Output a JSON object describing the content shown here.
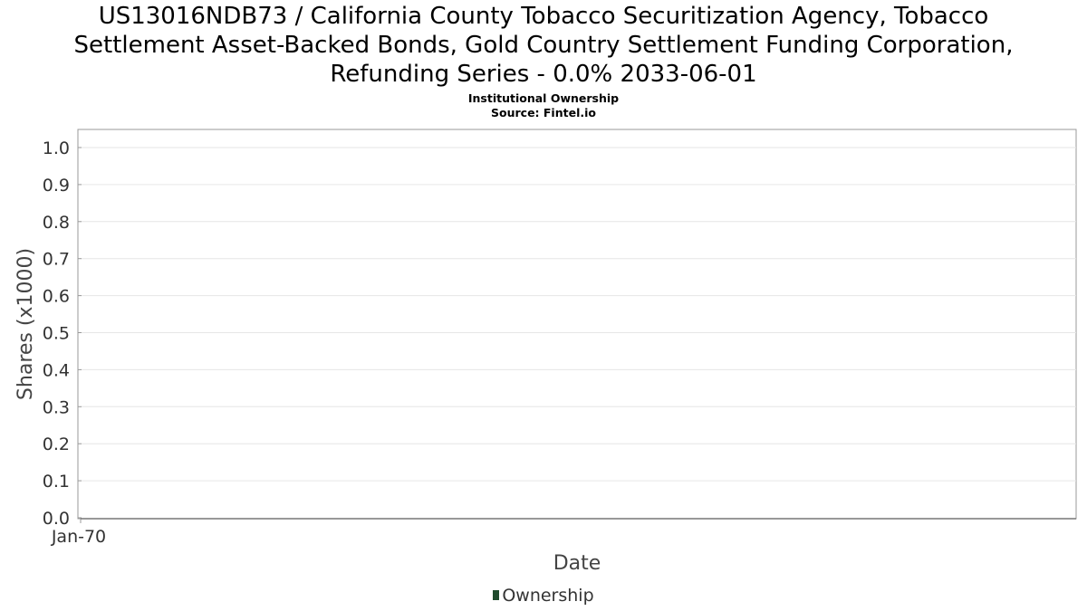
{
  "chart_data": {
    "type": "line",
    "title_lines": [
      "US13016NDB73 / California County Tobacco Securitization Agency, Tobacco",
      "Settlement Asset-Backed Bonds, Gold Country Settlement Funding Corporation,",
      "Refunding Series - 0.0% 2033-06-01"
    ],
    "subtitle_lines": [
      "Institutional Ownership",
      "Source: Fintel.io"
    ],
    "xlabel": "Date",
    "ylabel": "Shares (x1000)",
    "ylim": [
      0.0,
      1.0
    ],
    "yticks": [
      "0.0",
      "0.1",
      "0.2",
      "0.3",
      "0.4",
      "0.5",
      "0.6",
      "0.7",
      "0.8",
      "0.9",
      "1.0"
    ],
    "xticks": [
      "Jan-70"
    ],
    "grid": true,
    "legend_position": "bottom",
    "series": [
      {
        "name": "Ownership",
        "color": "#1f4a2c",
        "x": [],
        "values": []
      }
    ]
  }
}
